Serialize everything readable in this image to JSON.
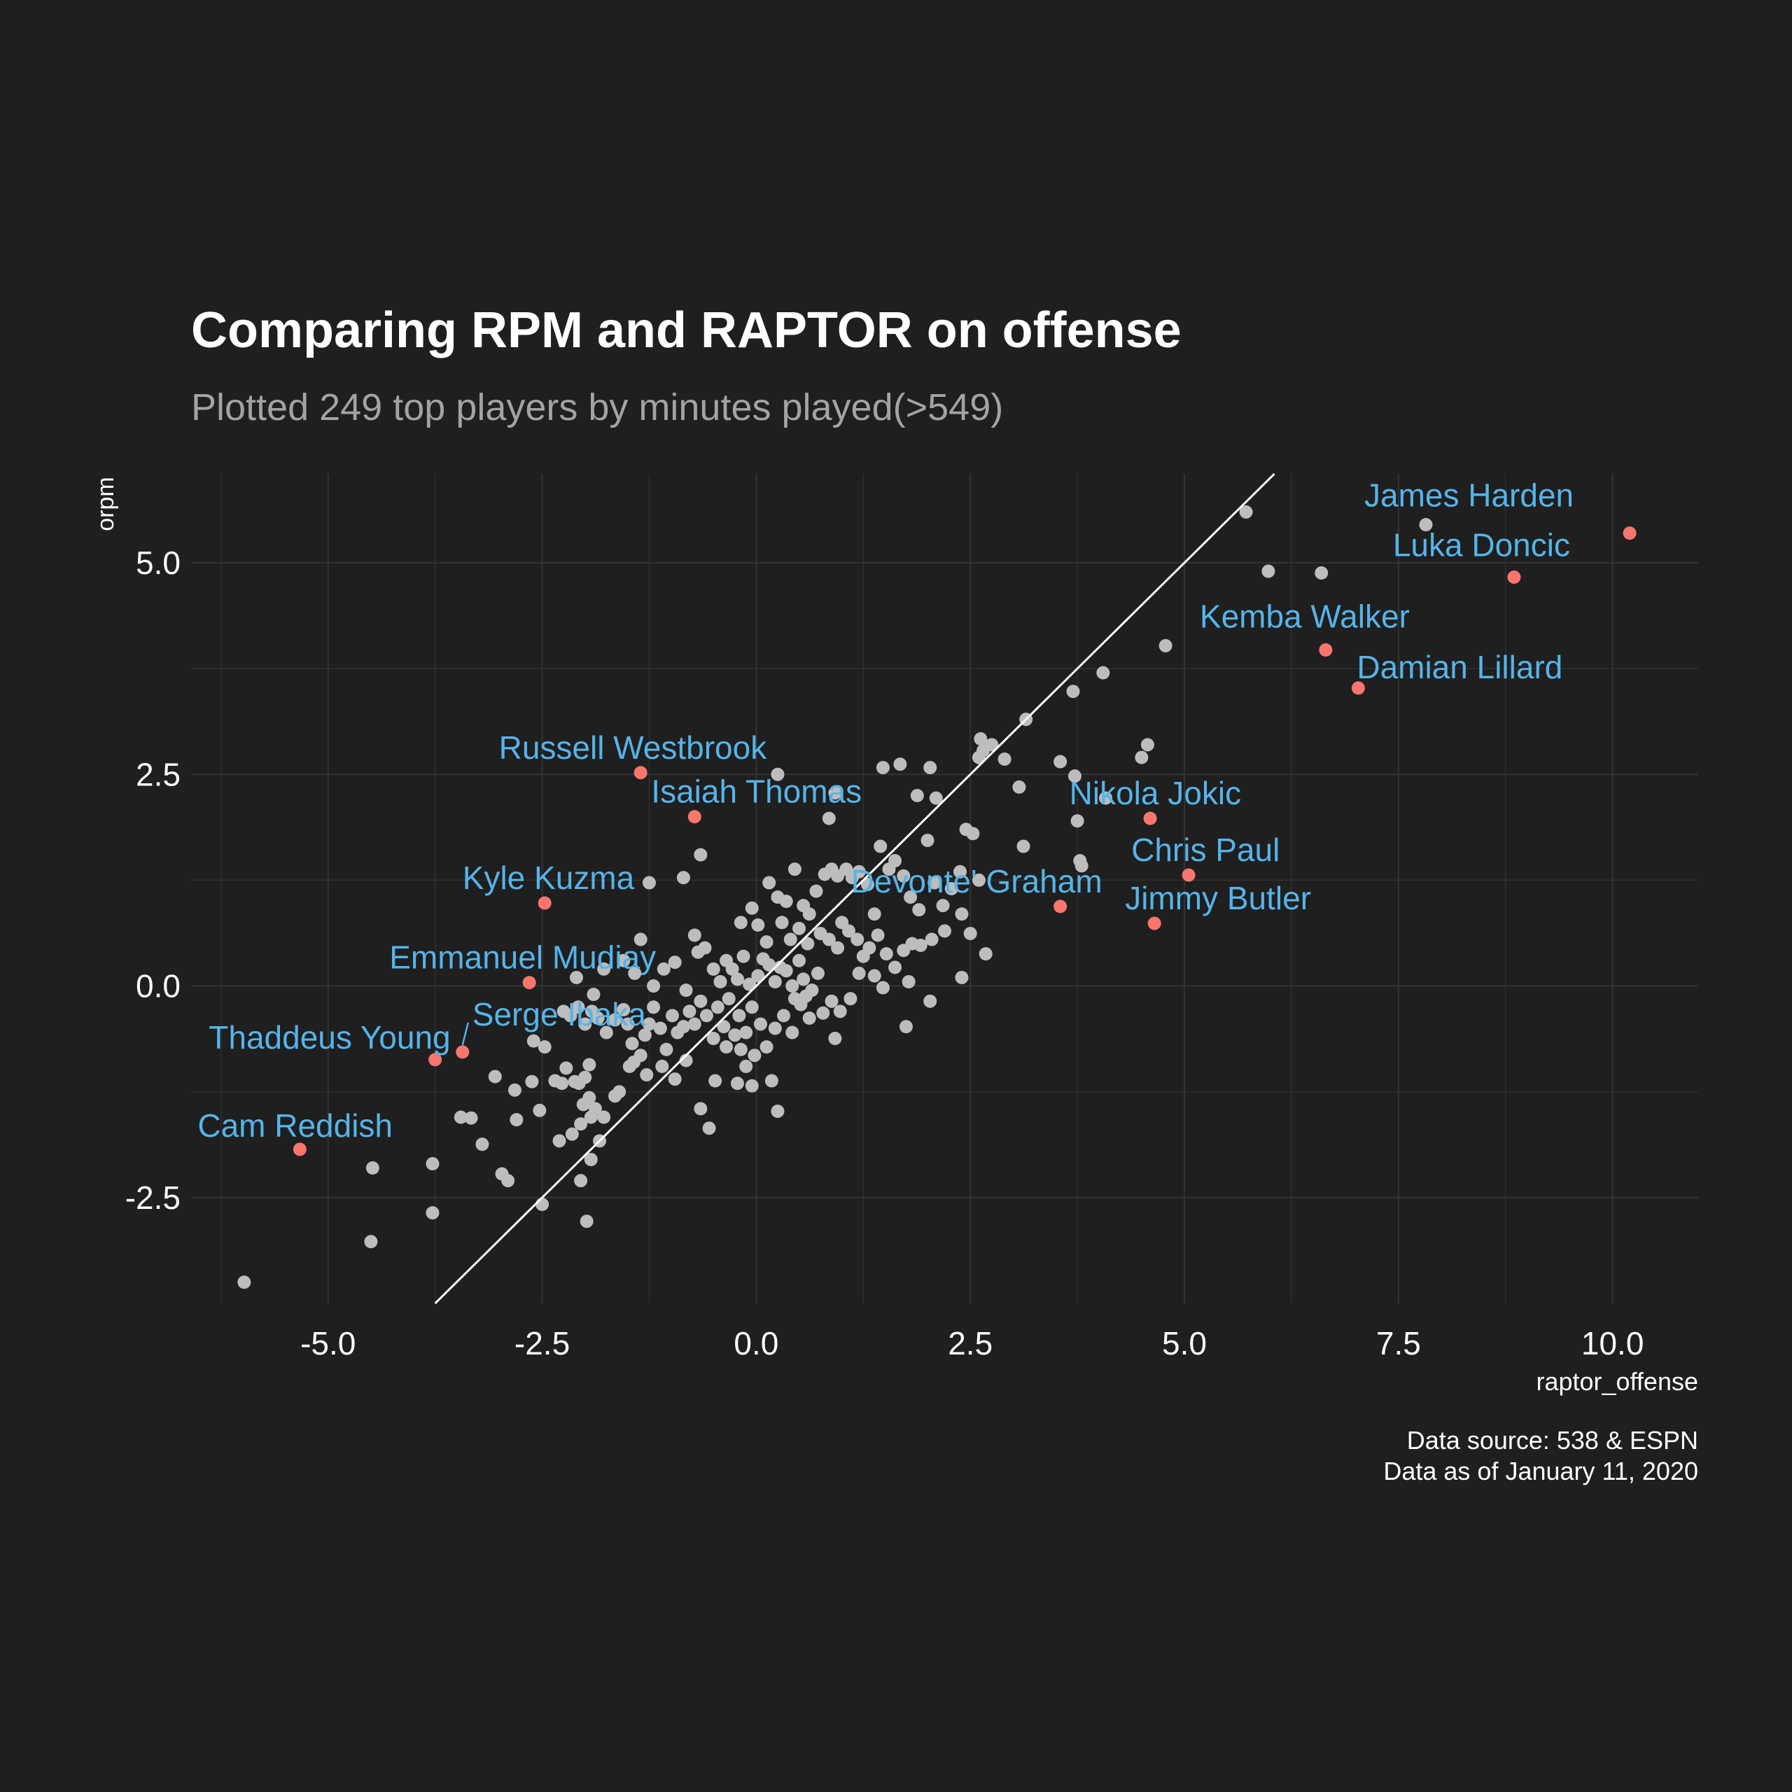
{
  "chart_data": {
    "type": "scatter",
    "title": "Comparing RPM and RAPTOR on offense",
    "subtitle": "Plotted 249 top players by minutes played(>549)",
    "xlabel": "raptor_offense",
    "ylabel": "orpm",
    "xlim": [
      -6.6,
      11.0
    ],
    "ylim": [
      -3.75,
      6.05
    ],
    "x_ticks": [
      -5.0,
      -2.5,
      0.0,
      2.5,
      5.0,
      7.5,
      10.0
    ],
    "x_tick_labels": [
      "-5.0",
      "-2.5",
      "0.0",
      "2.5",
      "5.0",
      "7.5",
      "10.0"
    ],
    "y_ticks": [
      -2.5,
      0.0,
      2.5,
      5.0
    ],
    "y_tick_labels": [
      "-2.5",
      "0.0",
      "2.5",
      "5.0"
    ],
    "grid": true,
    "reference_line": {
      "slope": 1,
      "intercept": 0,
      "color": "#ffffff"
    },
    "caption": [
      "Data source: 538 & ESPN",
      "Data as of January 11, 2020"
    ],
    "colors": {
      "background": "#1f1f1f",
      "points": "#bdbdbd",
      "highlight": "#f8766d",
      "label": "#56b4e9",
      "grid": "#333333"
    },
    "highlighted": [
      {
        "name": "James Harden",
        "x": 10.2,
        "y": 5.35
      },
      {
        "name": "Luka Doncic",
        "x": 8.85,
        "y": 4.83
      },
      {
        "name": "Kemba Walker",
        "x": 6.65,
        "y": 3.97
      },
      {
        "name": "Damian Lillard",
        "x": 7.03,
        "y": 3.52
      },
      {
        "name": "Nikola Jokic",
        "x": 4.6,
        "y": 1.98
      },
      {
        "name": "Chris Paul",
        "x": 5.05,
        "y": 1.31
      },
      {
        "name": "Jimmy Butler",
        "x": 4.65,
        "y": 0.74
      },
      {
        "name": "Devonte' Graham",
        "x": 3.55,
        "y": 0.94
      },
      {
        "name": "Russell Westbrook",
        "x": -1.35,
        "y": 2.52
      },
      {
        "name": "Isaiah Thomas",
        "x": -0.72,
        "y": 2.0
      },
      {
        "name": "Kyle Kuzma",
        "x": -2.47,
        "y": 0.98
      },
      {
        "name": "Emmanuel Mudiay",
        "x": -2.65,
        "y": 0.04
      },
      {
        "name": "Serge Ibaka",
        "x": -3.43,
        "y": -0.78
      },
      {
        "name": "Thaddeus Young",
        "x": -3.75,
        "y": -0.87
      },
      {
        "name": "Cam Reddish",
        "x": -5.33,
        "y": -1.93
      }
    ],
    "points": [
      [
        -5.98,
        -3.5
      ],
      [
        -4.5,
        -3.02
      ],
      [
        -3.78,
        -2.68
      ],
      [
        -4.48,
        -2.15
      ],
      [
        -3.78,
        -2.1
      ],
      [
        -3.45,
        -1.55
      ],
      [
        -3.33,
        -1.56
      ],
      [
        -3.2,
        -1.87
      ],
      [
        -2.97,
        -2.22
      ],
      [
        -2.9,
        -2.3
      ],
      [
        -2.5,
        -2.58
      ],
      [
        -2.05,
        -2.3
      ],
      [
        -1.98,
        -2.78
      ],
      [
        -1.93,
        -2.05
      ],
      [
        -2.3,
        -1.83
      ],
      [
        -2.15,
        -1.75
      ],
      [
        -2.05,
        -1.63
      ],
      [
        -1.83,
        -1.83
      ],
      [
        -2.8,
        -1.58
      ],
      [
        -3.05,
        -1.07
      ],
      [
        -2.82,
        -1.23
      ],
      [
        -2.62,
        -1.13
      ],
      [
        -2.53,
        -1.47
      ],
      [
        -2.35,
        -1.12
      ],
      [
        -2.27,
        -1.15
      ],
      [
        -2.22,
        -0.97
      ],
      [
        -2.12,
        -1.13
      ],
      [
        -2.07,
        -1.15
      ],
      [
        -2.0,
        -1.08
      ],
      [
        -1.95,
        -1.32
      ],
      [
        -1.95,
        -0.93
      ],
      [
        -1.88,
        -1.45
      ],
      [
        -2.02,
        -1.4
      ],
      [
        -1.93,
        -1.55
      ],
      [
        -1.78,
        -1.55
      ],
      [
        -2.6,
        -0.65
      ],
      [
        -2.47,
        -0.72
      ],
      [
        -2.25,
        -0.3
      ],
      [
        -2.17,
        -0.35
      ],
      [
        -2.08,
        -0.25
      ],
      [
        -2.0,
        -0.45
      ],
      [
        -1.92,
        -0.3
      ],
      [
        -1.85,
        -0.38
      ],
      [
        -1.75,
        -0.55
      ],
      [
        -1.65,
        -0.4
      ],
      [
        -1.55,
        -0.28
      ],
      [
        -1.5,
        -0.45
      ],
      [
        -1.45,
        -0.68
      ],
      [
        -1.43,
        -0.9
      ],
      [
        -1.35,
        -0.82
      ],
      [
        -1.3,
        -0.58
      ],
      [
        -1.25,
        -0.45
      ],
      [
        -1.2,
        -0.25
      ],
      [
        -1.12,
        -0.5
      ],
      [
        -1.05,
        -0.75
      ],
      [
        -0.98,
        -0.35
      ],
      [
        -0.92,
        -0.55
      ],
      [
        -0.85,
        -0.48
      ],
      [
        -0.78,
        -0.3
      ],
      [
        -0.72,
        -0.45
      ],
      [
        -0.65,
        -0.18
      ],
      [
        -0.58,
        -0.35
      ],
      [
        -0.5,
        -0.62
      ],
      [
        -0.45,
        -0.25
      ],
      [
        -0.38,
        -0.48
      ],
      [
        -0.32,
        -0.15
      ],
      [
        -0.25,
        -0.58
      ],
      [
        -0.2,
        -0.35
      ],
      [
        -0.12,
        -0.55
      ],
      [
        -0.05,
        -0.25
      ],
      [
        -1.9,
        -0.1
      ],
      [
        -1.78,
        0.2
      ],
      [
        -1.55,
        0.3
      ],
      [
        -1.42,
        0.15
      ],
      [
        -1.35,
        0.55
      ],
      [
        -1.2,
        0.0
      ],
      [
        -1.08,
        0.2
      ],
      [
        -0.95,
        0.28
      ],
      [
        -0.82,
        -0.05
      ],
      [
        -0.72,
        0.6
      ],
      [
        -0.68,
        0.4
      ],
      [
        -0.6,
        0.45
      ],
      [
        -0.5,
        0.2
      ],
      [
        -0.42,
        0.05
      ],
      [
        -0.35,
        0.3
      ],
      [
        -0.28,
        0.2
      ],
      [
        -0.22,
        0.08
      ],
      [
        -0.15,
        0.35
      ],
      [
        -0.08,
        0.02
      ],
      [
        0.02,
        0.12
      ],
      [
        0.08,
        0.32
      ],
      [
        0.15,
        0.25
      ],
      [
        0.22,
        0.05
      ],
      [
        0.28,
        0.22
      ],
      [
        0.35,
        0.18
      ],
      [
        0.42,
        0.0
      ],
      [
        0.5,
        0.3
      ],
      [
        0.58,
        -0.12
      ],
      [
        0.65,
        -0.05
      ],
      [
        0.72,
        0.15
      ],
      [
        -2.1,
        0.1
      ],
      [
        -1.25,
        1.22
      ],
      [
        -0.85,
        1.28
      ],
      [
        -0.65,
        1.55
      ],
      [
        -0.18,
        0.75
      ],
      [
        0.15,
        1.22
      ],
      [
        0.25,
        1.05
      ],
      [
        0.35,
        1.0
      ],
      [
        0.45,
        1.38
      ],
      [
        0.55,
        0.95
      ],
      [
        0.62,
        0.85
      ],
      [
        0.7,
        1.12
      ],
      [
        0.8,
        1.32
      ],
      [
        0.88,
        1.38
      ],
      [
        0.95,
        1.3
      ],
      [
        1.05,
        1.38
      ],
      [
        1.12,
        1.28
      ],
      [
        1.2,
        1.35
      ],
      [
        1.3,
        1.2
      ],
      [
        1.38,
        0.85
      ],
      [
        1.45,
        1.65
      ],
      [
        1.55,
        1.38
      ],
      [
        1.62,
        1.48
      ],
      [
        1.72,
        1.3
      ],
      [
        1.8,
        1.05
      ],
      [
        1.9,
        0.9
      ],
      [
        2.0,
        1.72
      ],
      [
        2.08,
        1.22
      ],
      [
        2.18,
        0.95
      ],
      [
        2.28,
        1.15
      ],
      [
        2.38,
        1.35
      ],
      [
        2.45,
        1.85
      ],
      [
        2.53,
        1.8
      ],
      [
        2.6,
        1.25
      ],
      [
        0.25,
        2.5
      ],
      [
        0.92,
        2.28
      ],
      [
        0.85,
        1.98
      ],
      [
        1.48,
        2.58
      ],
      [
        1.68,
        2.62
      ],
      [
        1.88,
        2.25
      ],
      [
        2.03,
        2.58
      ],
      [
        2.1,
        2.22
      ],
      [
        2.6,
        2.7
      ],
      [
        2.65,
        2.78
      ],
      [
        2.75,
        2.85
      ],
      [
        2.62,
        2.92
      ],
      [
        2.9,
        2.68
      ],
      [
        3.07,
        2.35
      ],
      [
        3.15,
        3.15
      ],
      [
        3.12,
        1.65
      ],
      [
        3.55,
        2.65
      ],
      [
        3.72,
        2.48
      ],
      [
        3.75,
        1.95
      ],
      [
        3.78,
        1.48
      ],
      [
        3.8,
        1.42
      ],
      [
        3.7,
        3.48
      ],
      [
        4.05,
        3.7
      ],
      [
        4.08,
        2.22
      ],
      [
        4.5,
        2.7
      ],
      [
        4.57,
        2.85
      ],
      [
        4.78,
        4.02
      ],
      [
        5.72,
        5.6
      ],
      [
        5.98,
        4.9
      ],
      [
        6.6,
        4.88
      ],
      [
        7.82,
        5.45
      ],
      [
        0.02,
        0.72
      ],
      [
        -0.05,
        0.92
      ],
      [
        0.12,
        0.52
      ],
      [
        0.3,
        0.75
      ],
      [
        0.4,
        0.55
      ],
      [
        0.5,
        0.68
      ],
      [
        0.6,
        0.5
      ],
      [
        0.75,
        0.62
      ],
      [
        0.85,
        0.55
      ],
      [
        0.95,
        0.45
      ],
      [
        1.0,
        0.75
      ],
      [
        1.08,
        0.65
      ],
      [
        1.18,
        0.55
      ],
      [
        1.25,
        0.35
      ],
      [
        1.32,
        0.45
      ],
      [
        1.42,
        0.6
      ],
      [
        1.52,
        0.38
      ],
      [
        1.62,
        0.22
      ],
      [
        1.72,
        0.42
      ],
      [
        1.82,
        0.5
      ],
      [
        1.92,
        0.48
      ],
      [
        2.05,
        0.55
      ],
      [
        2.2,
        0.65
      ],
      [
        2.4,
        0.85
      ],
      [
        2.5,
        0.62
      ],
      [
        2.68,
        0.38
      ],
      [
        2.4,
        0.1
      ],
      [
        1.78,
        0.05
      ],
      [
        1.2,
        0.15
      ],
      [
        1.1,
        -0.15
      ],
      [
        0.98,
        -0.3
      ],
      [
        0.88,
        -0.18
      ],
      [
        0.78,
        -0.32
      ],
      [
        0.62,
        -0.38
      ],
      [
        0.52,
        -0.22
      ],
      [
        0.42,
        -0.55
      ],
      [
        0.32,
        -0.35
      ],
      [
        0.22,
        -0.5
      ],
      [
        0.12,
        -0.72
      ],
      [
        0.05,
        -0.45
      ],
      [
        -0.02,
        -0.82
      ],
      [
        -0.12,
        -0.95
      ],
      [
        -0.22,
        -1.15
      ],
      [
        -0.35,
        -0.72
      ],
      [
        -0.48,
        -1.12
      ],
      [
        -0.55,
        -1.68
      ],
      [
        -0.65,
        -1.45
      ],
      [
        -0.82,
        -0.88
      ],
      [
        -0.95,
        -1.1
      ],
      [
        -1.1,
        -0.95
      ],
      [
        -1.28,
        -1.05
      ],
      [
        -1.48,
        -0.95
      ],
      [
        -1.65,
        -1.3
      ],
      [
        -1.6,
        -1.25
      ],
      [
        0.18,
        -1.12
      ],
      [
        0.25,
        -1.48
      ],
      [
        0.92,
        -0.62
      ],
      [
        1.75,
        -0.48
      ],
      [
        -0.05,
        -1.18
      ],
      [
        -0.18,
        -0.75
      ],
      [
        0.45,
        -0.15
      ],
      [
        0.55,
        0.08
      ],
      [
        1.38,
        0.12
      ],
      [
        1.48,
        -0.02
      ],
      [
        2.03,
        -0.18
      ]
    ]
  }
}
